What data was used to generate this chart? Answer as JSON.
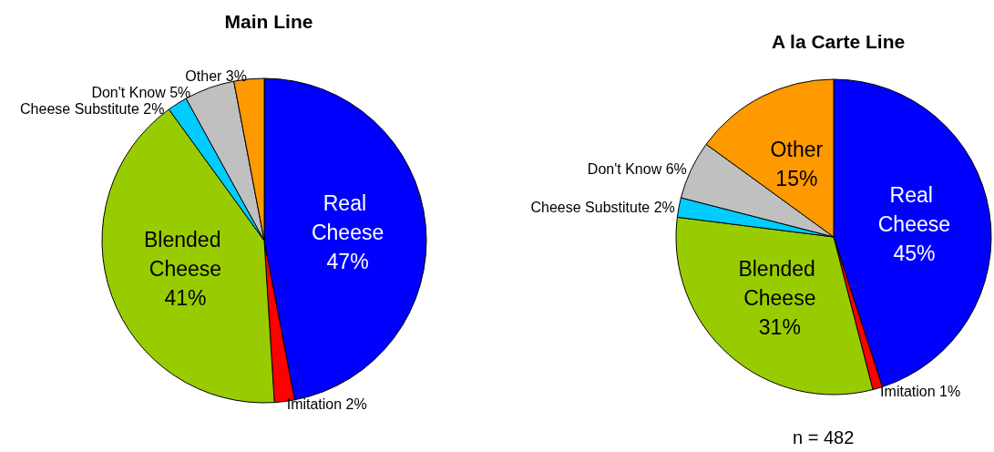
{
  "chart_data": [
    {
      "type": "pie",
      "title": "Main Line",
      "categories": [
        "Real Cheese",
        "Imitation",
        "Blended Cheese",
        "Cheese Substitute",
        "Don't Know",
        "Other"
      ],
      "values": [
        47,
        2,
        41,
        2,
        5,
        3
      ],
      "value_labels": [
        "47%",
        "2%",
        "41%",
        "2%",
        "5%",
        "3%"
      ],
      "colors": [
        "#0000ff",
        "#ff0000",
        "#99cc00",
        "#00ccff",
        "#c0c0c0",
        "#ff9900"
      ]
    },
    {
      "type": "pie",
      "title": "A la Carte Line",
      "categories": [
        "Real Cheese",
        "Imitation",
        "Blended Cheese",
        "Cheese Substitute",
        "Don't Know",
        "Other"
      ],
      "values": [
        45,
        1,
        31,
        2,
        6,
        15
      ],
      "value_labels": [
        "45%",
        "1%",
        "31%",
        "2%",
        "6%",
        "15%"
      ],
      "colors": [
        "#0000ff",
        "#ff0000",
        "#99cc00",
        "#00ccff",
        "#c0c0c0",
        "#ff9900"
      ],
      "annotations": [
        "n = 482"
      ]
    }
  ]
}
